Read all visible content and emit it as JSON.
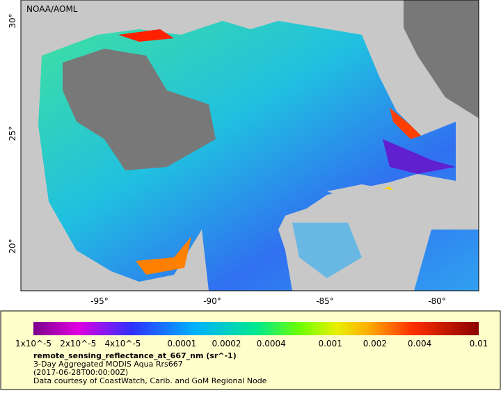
{
  "map": {
    "credit": "NOAA/AOML",
    "lat_labels": [
      "30°",
      "25°",
      "20°"
    ],
    "lon_labels": [
      "-95°",
      "-90°",
      "-85°",
      "-80°"
    ]
  },
  "colorbar": {
    "labels": [
      "1x10^-5",
      "2x10^-5",
      "4x10^-5",
      "0.0001",
      "0.0002",
      "0.0004",
      "0.001",
      "0.002",
      "0.004",
      "0.01"
    ]
  },
  "legend": {
    "variable": "remote_sensing_reflectance_at_667_nm (sr^-1)",
    "title": "3-Day Aggregated MODIS Aqua Rrs667",
    "date": "(2017-06-28T00:00:00Z)",
    "source": "Data courtesy of CoastWatch, Carib. and GoM Regional Node"
  }
}
